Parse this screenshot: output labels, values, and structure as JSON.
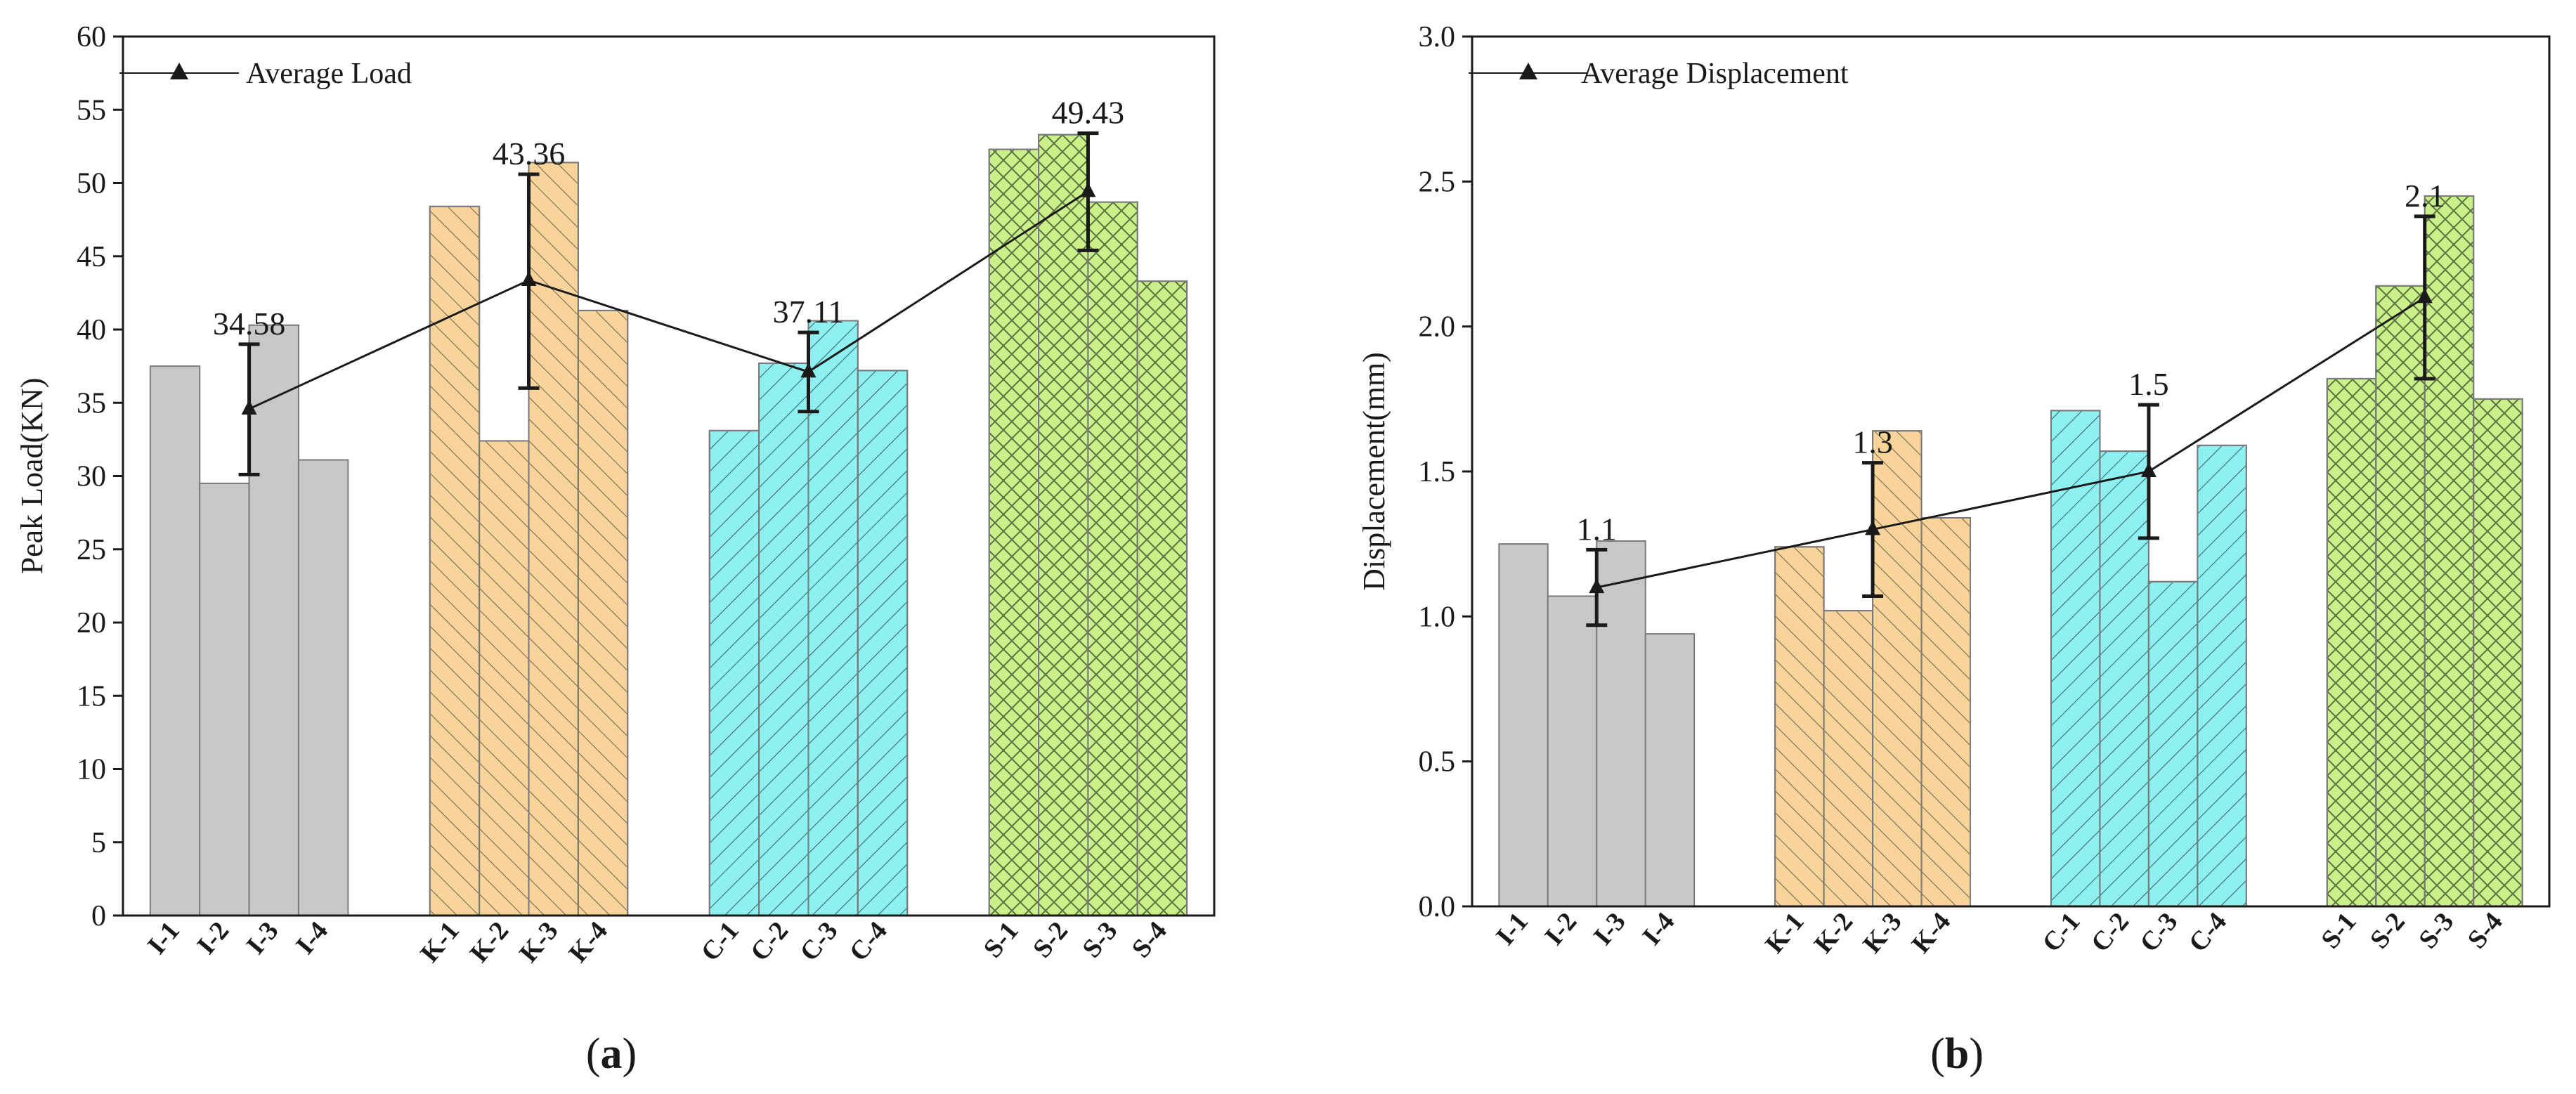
{
  "chart_data": [
    {
      "type": "bar",
      "panel_label": "a",
      "ylabel": "Peak Load(KN)",
      "xlabel": "",
      "ylim": [
        0,
        60
      ],
      "yticks": [
        0,
        5,
        10,
        15,
        20,
        25,
        30,
        35,
        40,
        45,
        50,
        55,
        60
      ],
      "ytick_decimals": 0,
      "grid": false,
      "legend": {
        "position": "top-left",
        "entries": [
          "Average Load"
        ]
      },
      "groups": [
        {
          "name": "I",
          "color": "#c8c8c8",
          "pattern": "none",
          "categories": [
            "I-1",
            "I-2",
            "I-3",
            "I-4"
          ],
          "values": [
            37.5,
            29.5,
            40.3,
            31.1
          ]
        },
        {
          "name": "K",
          "color": "#f9d49a",
          "pattern": "hatch-diagonal-right",
          "categories": [
            "K-1",
            "K-2",
            "K-3",
            "K-4"
          ],
          "values": [
            48.4,
            32.4,
            51.4,
            41.3
          ]
        },
        {
          "name": "C",
          "color": "#8ef0f0",
          "pattern": "hatch-diagonal-left",
          "categories": [
            "C-1",
            "C-2",
            "C-3",
            "C-4"
          ],
          "values": [
            33.1,
            37.7,
            40.6,
            37.2
          ]
        },
        {
          "name": "S",
          "color": "#c9f08a",
          "pattern": "crosshatch",
          "categories": [
            "S-1",
            "S-2",
            "S-3",
            "S-4"
          ],
          "values": [
            52.3,
            53.3,
            48.7,
            43.3
          ]
        }
      ],
      "average_series": {
        "name": "Average Load",
        "values": [
          34.58,
          43.36,
          37.11,
          49.43
        ],
        "labels": [
          "34.58",
          "43.36",
          "37.11",
          "49.43"
        ],
        "error_low": [
          30.1,
          36.0,
          34.4,
          45.4
        ],
        "error_high": [
          39.0,
          50.6,
          39.8,
          53.4
        ]
      }
    },
    {
      "type": "bar",
      "panel_label": "b",
      "ylabel": "Displacement(mm)",
      "xlabel": "",
      "ylim": [
        0,
        3.0
      ],
      "yticks": [
        0,
        0.5,
        1.0,
        1.5,
        2.0,
        2.5,
        3.0
      ],
      "ytick_decimals": 1,
      "grid": false,
      "legend": {
        "position": "top-left",
        "entries": [
          "Average Displacement"
        ]
      },
      "groups": [
        {
          "name": "I",
          "color": "#c8c8c8",
          "pattern": "none",
          "categories": [
            "I-1",
            "I-2",
            "I-3",
            "I-4"
          ],
          "values": [
            1.25,
            1.07,
            1.26,
            0.94
          ]
        },
        {
          "name": "K",
          "color": "#f9d49a",
          "pattern": "hatch-diagonal-right",
          "categories": [
            "K-1",
            "K-2",
            "K-3",
            "K-4"
          ],
          "values": [
            1.24,
            1.02,
            1.64,
            1.34
          ]
        },
        {
          "name": "C",
          "color": "#8ef0f0",
          "pattern": "hatch-diagonal-left",
          "categories": [
            "C-1",
            "C-2",
            "C-3",
            "C-4"
          ],
          "values": [
            1.71,
            1.57,
            1.12,
            1.59
          ]
        },
        {
          "name": "S",
          "color": "#c9f08a",
          "pattern": "crosshatch",
          "categories": [
            "S-1",
            "S-2",
            "S-3",
            "S-4"
          ],
          "values": [
            1.82,
            2.14,
            2.45,
            1.75
          ]
        }
      ],
      "average_series": {
        "name": "Average Displacement",
        "values": [
          1.1,
          1.3,
          1.5,
          2.1
        ],
        "labels": [
          "1.1",
          "1.3",
          "1.5",
          "2.1"
        ],
        "error_low": [
          0.97,
          1.07,
          1.27,
          1.82
        ],
        "error_high": [
          1.23,
          1.53,
          1.73,
          2.38
        ]
      }
    }
  ]
}
